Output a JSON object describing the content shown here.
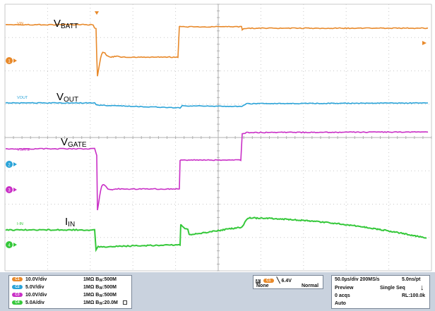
{
  "colors": {
    "ch1": "#e8892a",
    "ch2": "#2aa3d8",
    "ch3": "#c92fc6",
    "ch4": "#35c83a",
    "grid": "#c8c8c8",
    "panel": "#c9d2de"
  },
  "traces": [
    {
      "id": "vin",
      "label": "VIN",
      "annotation_main": "V",
      "annotation_sub": "BATT",
      "color": "#e8892a"
    },
    {
      "id": "vout",
      "label": "VOUT",
      "annotation_main": "V",
      "annotation_sub": "OUT",
      "color": "#2aa3d8"
    },
    {
      "id": "vgate",
      "label": "VGATE",
      "annotation_main": "V",
      "annotation_sub": "GATE",
      "color": "#c92fc6"
    },
    {
      "id": "iin",
      "label": "I-IN",
      "annotation_main": "I",
      "annotation_sub": "IN",
      "color": "#35c83a"
    }
  ],
  "markers": [
    {
      "text": "1",
      "color": "#e8892a"
    },
    {
      "text": "2",
      "color": "#2aa3d8"
    },
    {
      "text": "3",
      "color": "#c92fc6"
    },
    {
      "text": "4",
      "color": "#35c83a"
    }
  ],
  "panel": {
    "channels": [
      {
        "badge": "C1",
        "scale": "10.0V/div",
        "impedance": "1MΩ",
        "bw": "500M",
        "color": "#e8892a"
      },
      {
        "badge": "C2",
        "scale": "5.0V/div",
        "impedance": "1MΩ",
        "bw": "500M",
        "color": "#2aa3d8"
      },
      {
        "badge": "C3",
        "scale": "10.0V/div",
        "impedance": "1MΩ",
        "bw": "500M",
        "color": "#c92fc6"
      },
      {
        "badge": "C4",
        "scale": "5.0A/div",
        "impedance": "1MΩ",
        "bw": "20.0M",
        "color": "#35c83a"
      }
    ],
    "bw_prefix": "B",
    "bw_sub": "W",
    "trigger": {
      "tag": "A'",
      "source": "C1",
      "level": "6.4V",
      "coupling": "None",
      "mode": "Normal"
    },
    "acquisition": {
      "timebase": "50.0µs/div",
      "samplerate": "200MS/s",
      "resolution": "5.0ns/pt",
      "state": "Preview",
      "sequence": "Single Seq",
      "acqs": "0 acqs",
      "record": "RL:100.0k",
      "auto": "Auto"
    }
  }
}
